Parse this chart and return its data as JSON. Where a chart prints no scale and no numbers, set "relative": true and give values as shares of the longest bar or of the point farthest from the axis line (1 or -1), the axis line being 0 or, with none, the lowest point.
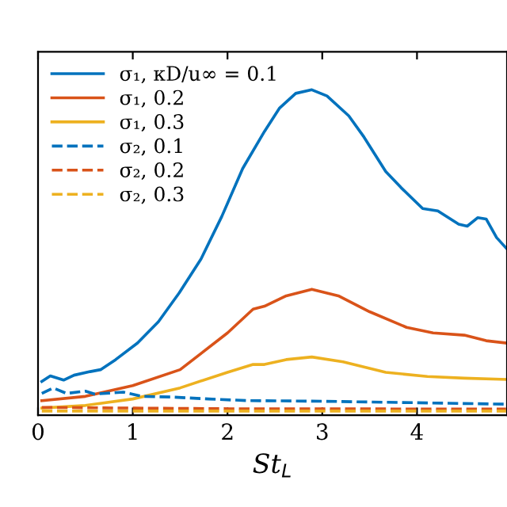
{
  "chart_data": {
    "type": "line",
    "relative": true,
    "xlabel": "St$_{L}$",
    "xlim": [
      0,
      4.95
    ],
    "xticks": [
      0,
      1,
      2,
      3,
      4
    ],
    "legend": "top left",
    "line_style": "solid",
    "grid": false,
    "series": [
      {
        "name": "σ₁, κD/u∞ = 0.1",
        "color": "#0072bd",
        "x": [
          0.04,
          0.13,
          0.27,
          0.38,
          0.55,
          0.66,
          0.82,
          1.05,
          1.27,
          1.49,
          1.72,
          1.94,
          2.16,
          2.39,
          2.55,
          2.72,
          2.89,
          3.05,
          3.28,
          3.44,
          3.67,
          3.83,
          4.06,
          4.22,
          4.44,
          4.53,
          4.64,
          4.73,
          4.84,
          4.94
        ],
        "values": [
          0.104,
          0.121,
          0.108,
          0.123,
          0.134,
          0.14,
          0.171,
          0.222,
          0.287,
          0.376,
          0.48,
          0.611,
          0.758,
          0.872,
          0.944,
          0.989,
          1,
          0.981,
          0.92,
          0.855,
          0.749,
          0.7,
          0.635,
          0.628,
          0.587,
          0.581,
          0.607,
          0.603,
          0.546,
          0.514
        ]
      },
      {
        "name": "σ₁, 0.2",
        "color": "#d95319",
        "x": [
          0.04,
          0.5,
          1,
          1.5,
          2,
          2.27,
          2.39,
          2.62,
          2.89,
          3.17,
          3.5,
          3.89,
          4.17,
          4.5,
          4.73,
          4.94
        ],
        "values": [
          0.045,
          0.058,
          0.091,
          0.14,
          0.253,
          0.326,
          0.335,
          0.367,
          0.387,
          0.367,
          0.318,
          0.27,
          0.253,
          0.246,
          0.229,
          0.222
        ]
      },
      {
        "name": "σ₁, 0.3",
        "color": "#edb120",
        "x": [
          0.04,
          0.5,
          1,
          1.5,
          2,
          2.27,
          2.39,
          2.62,
          2.89,
          3.22,
          3.67,
          4.11,
          4.5,
          4.94
        ],
        "values": [
          0.022,
          0.03,
          0.05,
          0.084,
          0.132,
          0.156,
          0.156,
          0.171,
          0.179,
          0.164,
          0.132,
          0.119,
          0.114,
          0.11
        ]
      },
      {
        "name": "σ₂, 0.1",
        "color": "#0072bd",
        "line_style": "dashed",
        "x": [
          0.04,
          0.16,
          0.3,
          0.5,
          0.6,
          0.9,
          1.1,
          1.4,
          1.8,
          2.2,
          3,
          4.94
        ],
        "values": [
          0.067,
          0.084,
          0.067,
          0.074,
          0.065,
          0.071,
          0.058,
          0.056,
          0.05,
          0.045,
          0.043,
          0.034
        ]
      },
      {
        "name": "σ₂, 0.2",
        "color": "#d95319",
        "line_style": "dashed",
        "x": [
          0.04,
          2,
          4.94
        ],
        "values": [
          0.024,
          0.02,
          0.019
        ]
      },
      {
        "name": "σ₂, 0.3",
        "color": "#edb120",
        "line_style": "dashed",
        "x": [
          0.04,
          2,
          4.94
        ],
        "values": [
          0.013,
          0.013,
          0.013
        ]
      }
    ]
  }
}
